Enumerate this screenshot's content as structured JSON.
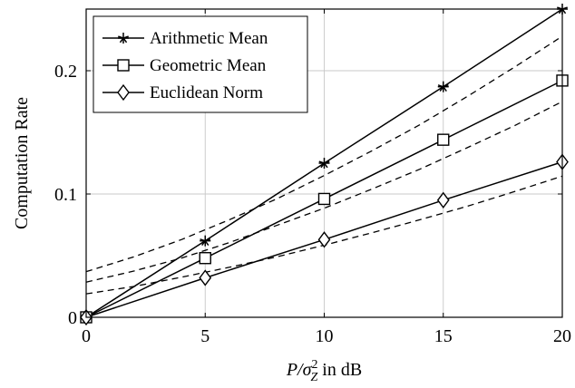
{
  "chart_data": {
    "type": "line",
    "xlabel": "P/σ_Z² in dB",
    "ylabel": "Computation Rate",
    "xlim": [
      0,
      20
    ],
    "ylim": [
      0,
      0.25
    ],
    "x_ticks": [
      0,
      5,
      10,
      15,
      20
    ],
    "y_ticks": [
      0,
      0.1,
      0.2
    ],
    "y_tick_labels": [
      "0",
      "0.1",
      "0.2"
    ],
    "grid": true,
    "legend_position": "top-left",
    "x": [
      0,
      5,
      10,
      15,
      20
    ],
    "series": [
      {
        "name": "Arithmetic Mean",
        "marker": "star",
        "style": "solid",
        "values": [
          0,
          0.062,
          0.125,
          0.187,
          0.25
        ]
      },
      {
        "name": "Geometric Mean",
        "marker": "square",
        "style": "solid",
        "values": [
          0,
          0.048,
          0.096,
          0.144,
          0.192
        ]
      },
      {
        "name": "Euclidean Norm",
        "marker": "diamond",
        "style": "solid",
        "values": [
          0,
          0.032,
          0.063,
          0.095,
          0.126
        ]
      }
    ],
    "dashed_curves": [
      {
        "x": [
          0,
          2,
          4,
          6,
          8,
          10,
          12,
          14,
          16,
          18,
          20
        ],
        "values": [
          0.037,
          0.049,
          0.063,
          0.079,
          0.096,
          0.115,
          0.135,
          0.156,
          0.179,
          0.203,
          0.228
        ]
      },
      {
        "x": [
          0,
          2,
          4,
          6,
          8,
          10,
          12,
          14,
          16,
          18,
          20
        ],
        "values": [
          0.0285,
          0.0375,
          0.048,
          0.0605,
          0.0745,
          0.0885,
          0.104,
          0.12,
          0.1375,
          0.1555,
          0.175
        ]
      },
      {
        "x": [
          0,
          2,
          4,
          6,
          8,
          10,
          12,
          14,
          16,
          18,
          20
        ],
        "values": [
          0.019,
          0.025,
          0.0325,
          0.0405,
          0.049,
          0.0585,
          0.0685,
          0.079,
          0.09,
          0.102,
          0.1145
        ]
      }
    ],
    "dashed_offsets": [
      0,
      0.0012,
      0.0006
    ]
  },
  "colors": {
    "line": "#000000",
    "grid": "#c8c8c8",
    "background": "#ffffff"
  }
}
